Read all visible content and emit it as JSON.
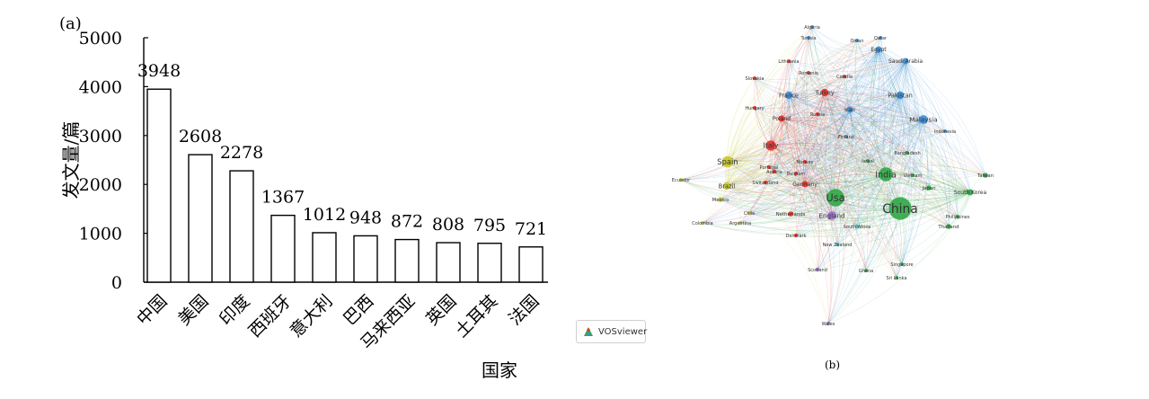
{
  "panel_a": {
    "label": "(a)"
  },
  "panel_b": {
    "label": "(b)"
  },
  "vosviewer_badge": {
    "text": "VOSviewer",
    "icon": "vosviewer-logo-icon"
  },
  "chart_data": {
    "type": "bar",
    "categories": [
      "中国",
      "美国",
      "印度",
      "西班牙",
      "意大利",
      "巴西",
      "马来西亚",
      "英国",
      "土耳其",
      "法国"
    ],
    "values": [
      3948,
      2608,
      2278,
      1367,
      1012,
      948,
      872,
      808,
      795,
      721
    ],
    "value_labels": [
      "3948",
      "2608",
      "2278",
      "1367",
      "1012",
      "948",
      "872",
      "808",
      "795",
      "721"
    ],
    "title": "",
    "xlabel": "国家",
    "ylabel": "发文量/篇",
    "ylim": [
      0,
      5000
    ],
    "yticks": [
      0,
      1000,
      2000,
      3000,
      4000,
      5000
    ],
    "grid": false,
    "bar_fill": "#ffffff",
    "bar_stroke": "#000000"
  },
  "network": {
    "title": "",
    "colors": {
      "red": "#e8322f",
      "green": "#34a84a",
      "blue": "#3d8fd6",
      "yellow": "#c9c92a",
      "purple": "#a070d0",
      "cyan": "#30b8c8"
    },
    "nodes": [
      {
        "label": "China",
        "color": "green",
        "weight": 18
      },
      {
        "label": "Usa",
        "color": "green",
        "weight": 14
      },
      {
        "label": "India",
        "color": "green",
        "weight": 11
      },
      {
        "label": "Spain",
        "color": "yellow",
        "weight": 9
      },
      {
        "label": "Italy",
        "color": "red",
        "weight": 8
      },
      {
        "label": "Malaysia",
        "color": "blue",
        "weight": 7
      },
      {
        "label": "Brazil",
        "color": "yellow",
        "weight": 6
      },
      {
        "label": "England",
        "color": "purple",
        "weight": 7
      },
      {
        "label": "Turkey",
        "color": "red",
        "weight": 6
      },
      {
        "label": "France",
        "color": "blue",
        "weight": 6
      },
      {
        "label": "Pakistan",
        "color": "blue",
        "weight": 6
      },
      {
        "label": "Poland",
        "color": "red",
        "weight": 5
      },
      {
        "label": "Iran",
        "color": "blue",
        "weight": 5
      },
      {
        "label": "Germany",
        "color": "red",
        "weight": 5
      },
      {
        "label": "Saudi Arabia",
        "color": "blue",
        "weight": 5
      },
      {
        "label": "Egypt",
        "color": "blue",
        "weight": 5
      },
      {
        "label": "South Korea",
        "color": "green",
        "weight": 5
      },
      {
        "label": "Netherlands",
        "color": "red",
        "weight": 4
      },
      {
        "label": "Mexico",
        "color": "yellow",
        "weight": 4
      },
      {
        "label": "Japan",
        "color": "green",
        "weight": 4
      },
      {
        "label": "Taiwan",
        "color": "green",
        "weight": 4
      },
      {
        "label": "Thailand",
        "color": "green",
        "weight": 4
      },
      {
        "label": "Tunisia",
        "color": "blue",
        "weight": 3
      },
      {
        "label": "Portugal",
        "color": "red",
        "weight": 3
      },
      {
        "label": "Belgium",
        "color": "red",
        "weight": 3
      },
      {
        "label": "Switzerland",
        "color": "red",
        "weight": 3
      },
      {
        "label": "Austria",
        "color": "red",
        "weight": 3
      },
      {
        "label": "Norway",
        "color": "red",
        "weight": 3
      },
      {
        "label": "Denmark",
        "color": "red",
        "weight": 3
      },
      {
        "label": "Scotland",
        "color": "purple",
        "weight": 3
      },
      {
        "label": "South Africa",
        "color": "cyan",
        "weight": 3
      },
      {
        "label": "Romania",
        "color": "red",
        "weight": 3
      },
      {
        "label": "Croatia",
        "color": "red",
        "weight": 2
      },
      {
        "label": "Russia",
        "color": "red",
        "weight": 2
      },
      {
        "label": "Slovakia",
        "color": "red",
        "weight": 2
      },
      {
        "label": "Hungary",
        "color": "red",
        "weight": 2
      },
      {
        "label": "Lithuania",
        "color": "red",
        "weight": 2
      },
      {
        "label": "Finland",
        "color": "blue",
        "weight": 2
      },
      {
        "label": "Israel",
        "color": "green",
        "weight": 2
      },
      {
        "label": "Bangladesh",
        "color": "green",
        "weight": 2
      },
      {
        "label": "Vietnam",
        "color": "green",
        "weight": 2
      },
      {
        "label": "Indonesia",
        "color": "blue",
        "weight": 2
      },
      {
        "label": "Philippines",
        "color": "green",
        "weight": 2
      },
      {
        "label": "Singapore",
        "color": "green",
        "weight": 2
      },
      {
        "label": "Sri Lanka",
        "color": "green",
        "weight": 2
      },
      {
        "label": "Ghana",
        "color": "green",
        "weight": 2
      },
      {
        "label": "New Zealand",
        "color": "cyan",
        "weight": 2
      },
      {
        "label": "Wales",
        "color": "purple",
        "weight": 2
      },
      {
        "label": "Chile",
        "color": "yellow",
        "weight": 2
      },
      {
        "label": "Colombia",
        "color": "yellow",
        "weight": 2
      },
      {
        "label": "Argentina",
        "color": "yellow",
        "weight": 2
      },
      {
        "label": "Ecuador",
        "color": "yellow",
        "weight": 2
      },
      {
        "label": "Algeria",
        "color": "blue",
        "weight": 2
      },
      {
        "label": "Qatar",
        "color": "blue",
        "weight": 2
      },
      {
        "label": "Oman",
        "color": "blue",
        "weight": 2
      }
    ]
  }
}
